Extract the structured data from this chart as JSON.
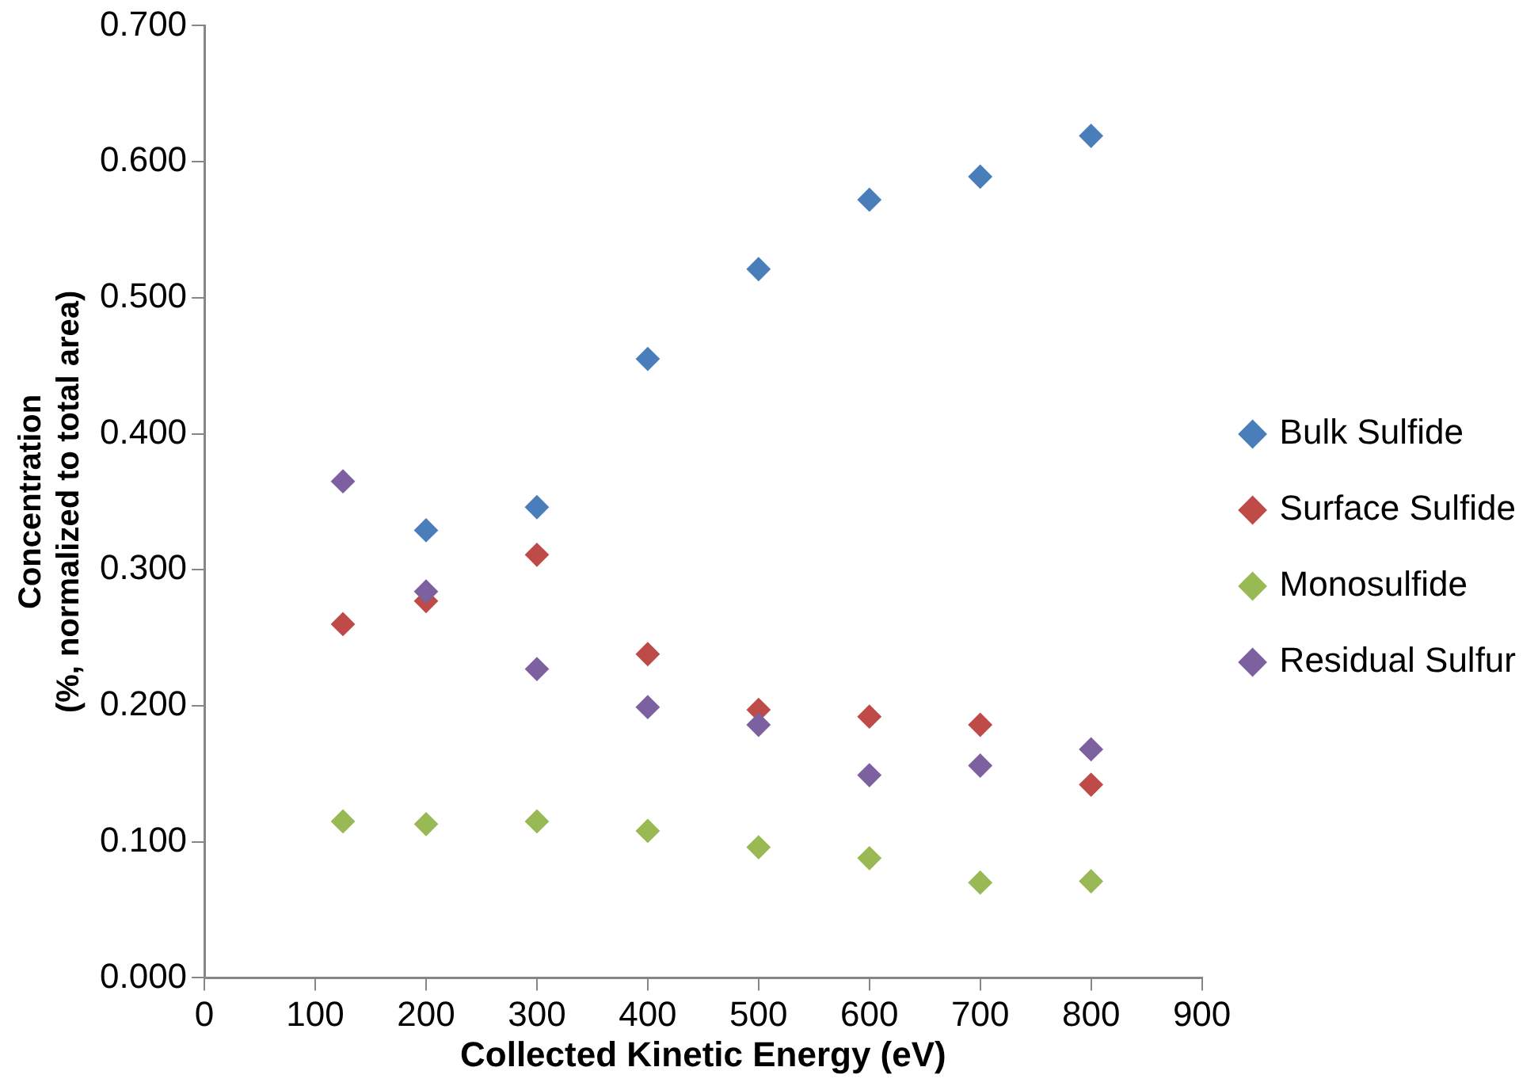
{
  "chart_data": {
    "type": "scatter",
    "xlabel": "Collected Kinetic Energy (eV)",
    "ylabel": "Concentration\n(%, normalized to total area)",
    "x": [
      125,
      200,
      300,
      400,
      500,
      600,
      700,
      800
    ],
    "series": [
      {
        "name": "Bulk Sulfide",
        "color": "#4a7ebb",
        "values": [
          null,
          0.329,
          0.346,
          0.455,
          0.521,
          0.572,
          0.589,
          0.619
        ]
      },
      {
        "name": "Surface Sulfide",
        "color": "#be4b48",
        "values": [
          0.26,
          0.277,
          0.311,
          0.238,
          0.197,
          0.192,
          0.186,
          0.142
        ]
      },
      {
        "name": "Monosulfide",
        "color": "#98b954",
        "values": [
          0.115,
          0.113,
          0.115,
          0.108,
          0.096,
          0.088,
          0.07,
          0.071
        ]
      },
      {
        "name": "Residual Sulfur",
        "color": "#7d60a0",
        "values": [
          0.365,
          0.284,
          0.227,
          0.199,
          0.186,
          0.149,
          0.156,
          0.168
        ]
      }
    ],
    "xlim": [
      0,
      900
    ],
    "xticks": [
      0,
      100,
      200,
      300,
      400,
      500,
      600,
      700,
      800,
      900
    ],
    "ylim": [
      0,
      0.7
    ],
    "yticks": [
      {
        "value": 0,
        "label": "0.000"
      },
      {
        "value": 0.1,
        "label": "0.100"
      },
      {
        "value": 0.2,
        "label": "0.200"
      },
      {
        "value": 0.3,
        "label": "0.300"
      },
      {
        "value": 0.4,
        "label": "0.400"
      },
      {
        "value": 0.5,
        "label": "0.500"
      },
      {
        "value": 0.6,
        "label": "0.600"
      },
      {
        "value": 0.7,
        "label": "0.700"
      }
    ],
    "grid": false,
    "legend": "right",
    "marker": "diamond"
  }
}
